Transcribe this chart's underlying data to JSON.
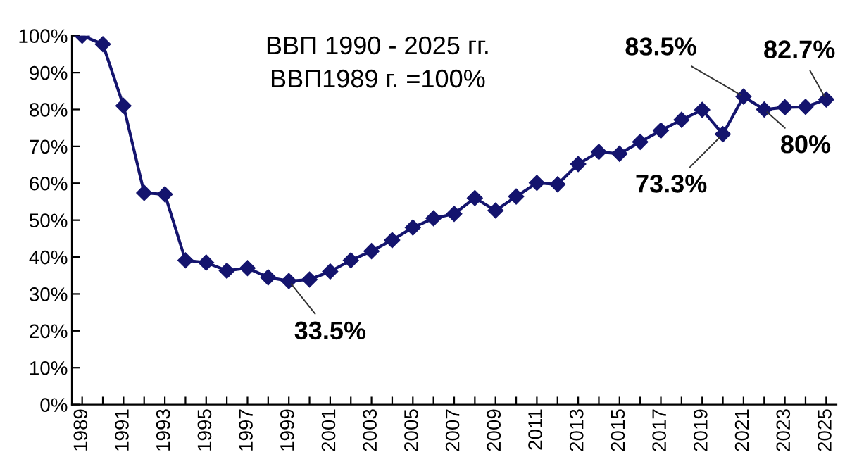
{
  "chart_data": {
    "type": "line",
    "title": "ВВП 1990 - 2025 гг.",
    "subtitle": "ВВП1989 г. =100%",
    "x": [
      1989,
      1990,
      1991,
      1992,
      1993,
      1994,
      1995,
      1996,
      1997,
      1998,
      1999,
      2000,
      2001,
      2002,
      2003,
      2004,
      2005,
      2006,
      2007,
      2008,
      2009,
      2010,
      2011,
      2012,
      2013,
      2014,
      2015,
      2016,
      2017,
      2018,
      2019,
      2020,
      2021,
      2022,
      2023,
      2024,
      2025
    ],
    "series": [
      {
        "color": "#14146e",
        "values": [
          100,
          97.7,
          81,
          57.4,
          57,
          39.1,
          38.5,
          36.3,
          37,
          34.5,
          33.5,
          33.9,
          36.1,
          39.1,
          41.6,
          44.6,
          48,
          50.5,
          51.7,
          56,
          52.6,
          56.4,
          60.1,
          59.7,
          65.2,
          68.5,
          68,
          71.2,
          74.3,
          77.2,
          79.9,
          73.3,
          83.5,
          80,
          80.6,
          80.7,
          82.7
        ]
      }
    ],
    "marker": "diamond",
    "line_style": "solid",
    "grid": false,
    "legend": false,
    "xlim": [
      1988.5,
      2025.5
    ],
    "xticks": [
      1989,
      {
        "value": 1990,
        "label": null
      },
      1991,
      {
        "value": 1992,
        "label": null
      },
      1993,
      {
        "value": 1994,
        "label": null
      },
      1995,
      {
        "value": 1996,
        "label": null
      },
      1997,
      {
        "value": 1998,
        "label": null
      },
      1999,
      {
        "value": 2000,
        "label": null
      },
      2001,
      {
        "value": 2002,
        "label": null
      },
      2003,
      {
        "value": 2004,
        "label": null
      },
      2005,
      {
        "value": 2006,
        "label": null
      },
      2007,
      {
        "value": 2008,
        "label": null
      },
      2009,
      {
        "value": 2010,
        "label": null
      },
      2011,
      {
        "value": 2012,
        "label": null
      },
      2013,
      {
        "value": 2014,
        "label": null
      },
      2015,
      {
        "value": 2016,
        "label": null
      },
      2017,
      {
        "value": 2018,
        "label": null
      },
      2019,
      {
        "value": 2020,
        "label": null
      },
      2021,
      {
        "value": 2022,
        "label": null
      },
      2023,
      {
        "value": 2024,
        "label": null
      },
      2025
    ],
    "ylim": [
      0,
      100
    ],
    "yticks": [
      {
        "value": 0,
        "label": "0%"
      },
      {
        "value": 10,
        "label": "10%"
      },
      {
        "value": 20,
        "label": "20%"
      },
      {
        "value": 30,
        "label": "30%"
      },
      {
        "value": 40,
        "label": "40%"
      },
      {
        "value": 50,
        "label": "50%"
      },
      {
        "value": 60,
        "label": "60%"
      },
      {
        "value": 70,
        "label": "70%"
      },
      {
        "value": 80,
        "label": "80%"
      },
      {
        "value": 90,
        "label": "90%"
      },
      {
        "value": 100,
        "label": "100%"
      }
    ],
    "annotations": [
      {
        "text": "33.5%",
        "x": 1999,
        "y": 33.5
      },
      {
        "text": "73.3%",
        "x": 2020,
        "y": 73.3
      },
      {
        "text": "83.5%",
        "x": 2021,
        "y": 83.5
      },
      {
        "text": "80%",
        "x": 2022,
        "y": 80
      },
      {
        "text": "82.7%",
        "x": 2025,
        "y": 82.7
      }
    ]
  }
}
